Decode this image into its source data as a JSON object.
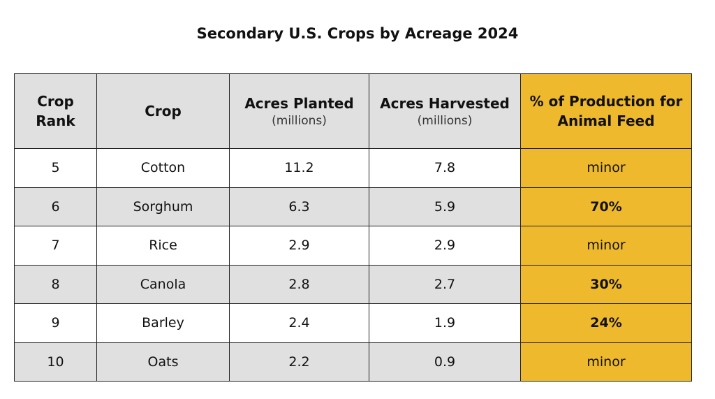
{
  "title": "Secondary U.S. Crops by Acreage 2024",
  "headers": {
    "rank": "Crop Rank",
    "crop": "Crop",
    "planted": "Acres Planted",
    "planted_sub": "(millions)",
    "harvested": "Acres Harvested",
    "harvested_sub": "(millions)",
    "feed": "% of Production for Animal Feed"
  },
  "colors": {
    "header_bg": "#e0e0e0",
    "feed_bg": "#efb92e"
  },
  "rows": [
    {
      "rank": "5",
      "crop": "Cotton",
      "planted": "11.2",
      "harvested": "7.8",
      "feed": "minor"
    },
    {
      "rank": "6",
      "crop": "Sorghum",
      "planted": "6.3",
      "harvested": "5.9",
      "feed": "70%"
    },
    {
      "rank": "7",
      "crop": "Rice",
      "planted": "2.9",
      "harvested": "2.9",
      "feed": "minor"
    },
    {
      "rank": "8",
      "crop": "Canola",
      "planted": "2.8",
      "harvested": "2.7",
      "feed": "30%"
    },
    {
      "rank": "9",
      "crop": "Barley",
      "planted": "2.4",
      "harvested": "1.9",
      "feed": "24%"
    },
    {
      "rank": "10",
      "crop": "Oats",
      "planted": "2.2",
      "harvested": "0.9",
      "feed": "minor"
    }
  ]
}
